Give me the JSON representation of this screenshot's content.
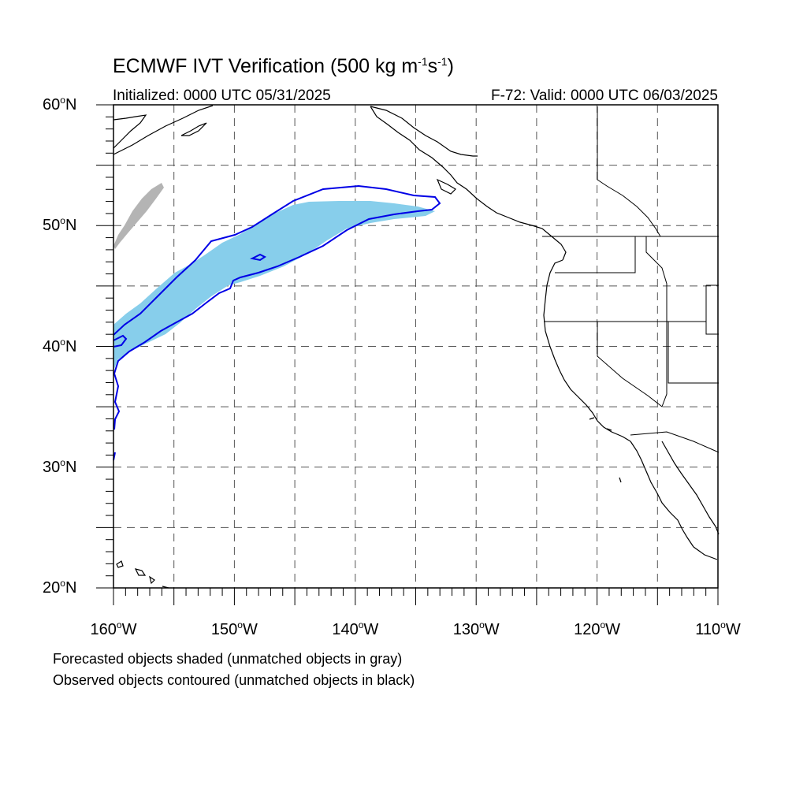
{
  "title": {
    "main": "ECMWF IVT Verification (500 kg m",
    "exp1": "-1",
    "mid": "s",
    "exp2": "-1",
    "end": ")"
  },
  "subtitle": {
    "initialized": "Initialized: 0000 UTC 05/31/2025",
    "valid": "F-72: Valid: 0000 UTC 06/03/2025"
  },
  "axes": {
    "lat_labels": [
      {
        "value": 60,
        "text": "60",
        "suffix": "N"
      },
      {
        "value": 50,
        "text": "50",
        "suffix": "N"
      },
      {
        "value": 40,
        "text": "40",
        "suffix": "N"
      },
      {
        "value": 30,
        "text": "30",
        "suffix": "N"
      },
      {
        "value": 20,
        "text": "20",
        "suffix": "N"
      }
    ],
    "lon_labels": [
      {
        "value": -160,
        "text": "160",
        "suffix": "W"
      },
      {
        "value": -150,
        "text": "150",
        "suffix": "W"
      },
      {
        "value": -140,
        "text": "140",
        "suffix": "W"
      },
      {
        "value": -130,
        "text": "130",
        "suffix": "W"
      },
      {
        "value": -120,
        "text": "120",
        "suffix": "W"
      },
      {
        "value": -110,
        "text": "110",
        "suffix": "W"
      }
    ],
    "degree_symbol": "o",
    "lat_range": [
      20,
      60
    ],
    "lon_range": [
      -160,
      -110
    ],
    "gridline_spacing_deg": 5,
    "gridlines": "dashed"
  },
  "footnotes": {
    "line1": "Forecasted objects shaded (unmatched objects in gray)",
    "line2": "Observed objects contoured (unmatched objects in black)"
  },
  "colors": {
    "forecast_matched": "#87ceeb",
    "forecast_unmatched": "#b4b4b4",
    "observed_matched": "#0000e6",
    "coastline": "#000000"
  }
}
